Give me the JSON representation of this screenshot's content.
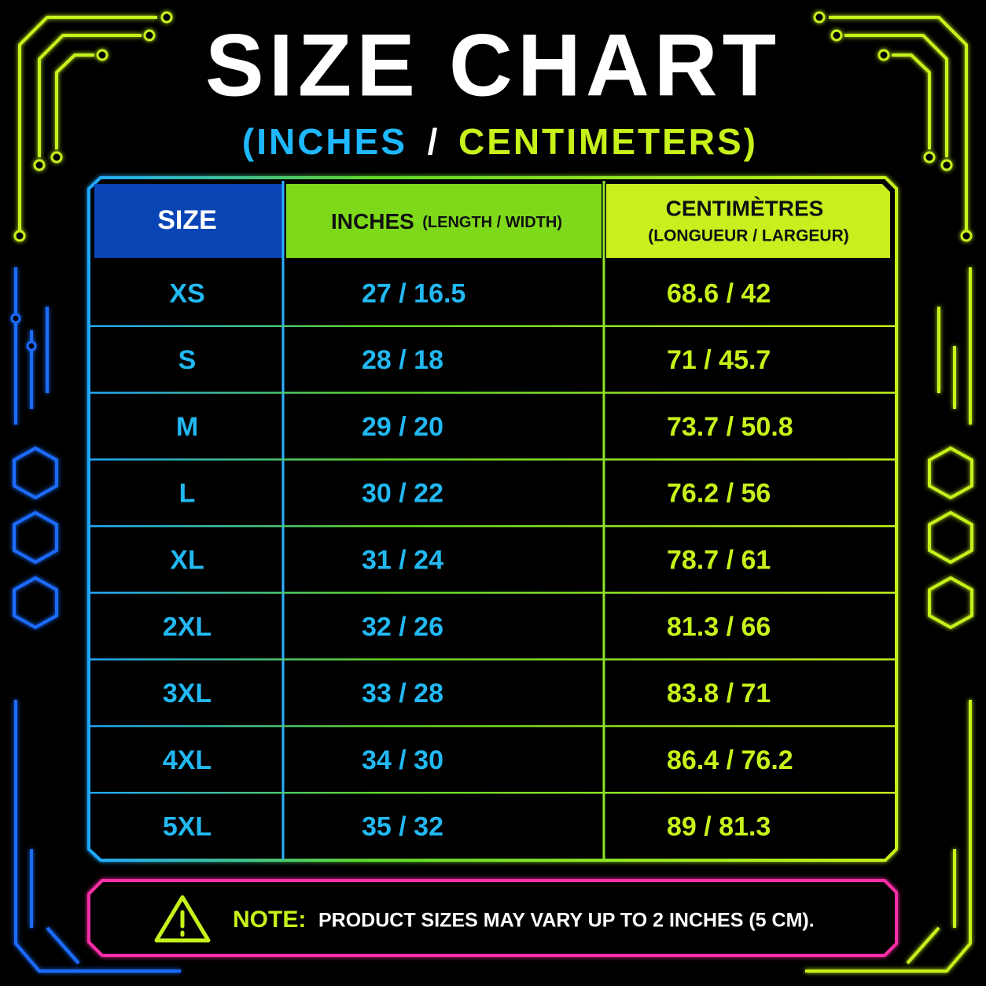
{
  "header": {
    "title": "SIZE CHART",
    "subtitle_left": "(INCHES",
    "subtitle_separator": "/",
    "subtitle_right": "CENTIMETERS)"
  },
  "table": {
    "headers": [
      {
        "main": "SIZE"
      },
      {
        "main": "INCHES",
        "sub": "(LENGTH / WIDTH)"
      },
      {
        "main": "CENTIMÈTRES",
        "sub": "(LONGUEUR / LARGEUR)"
      }
    ],
    "rows": [
      [
        "XS",
        "27 / 16.5",
        "68.6 / 42"
      ],
      [
        "S",
        "28 / 18",
        "71 / 45.7"
      ],
      [
        "M",
        "29 / 20",
        "73.7 / 50.8"
      ],
      [
        "L",
        "30 / 22",
        "76.2 / 56"
      ],
      [
        "XL",
        "31 / 24",
        "78.7 / 61"
      ],
      [
        "2XL",
        "32 / 26",
        "81.3 / 66"
      ],
      [
        "3XL",
        "33 / 28",
        "83.8 / 71"
      ],
      [
        "4XL",
        "34 / 30",
        "86.4 / 76.2"
      ],
      [
        "5XL",
        "35 / 32",
        "89 / 81.3"
      ]
    ]
  },
  "note": {
    "label": "NOTE:",
    "text": "PRODUCT SIZES MAY VARY UP TO 2 INCHES (5 CM)."
  }
}
